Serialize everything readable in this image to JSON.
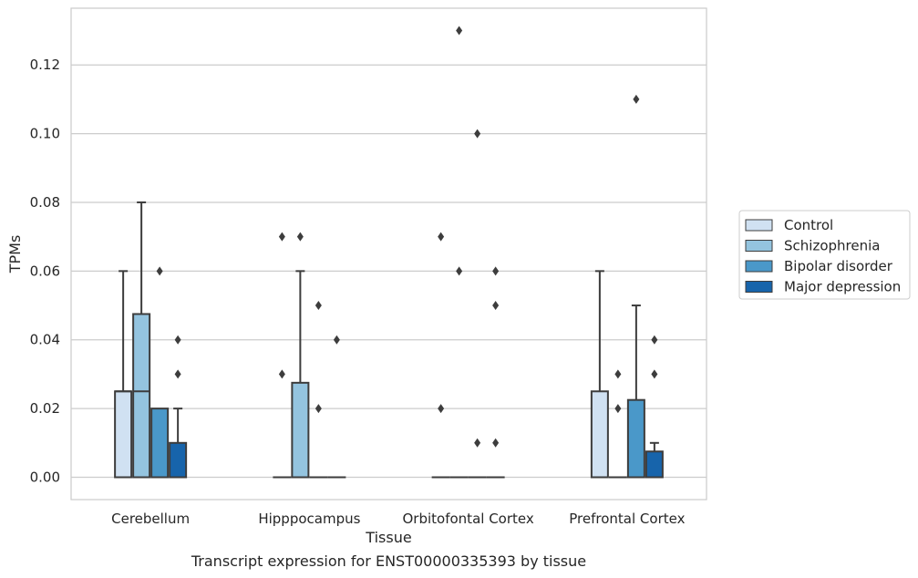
{
  "caption": "Transcript expression for ENST00000335393 by tissue",
  "chart_data": {
    "type": "box",
    "title": "",
    "xlabel": "Tissue",
    "ylabel": "TPMs",
    "ylim": [
      -0.0065,
      0.1365
    ],
    "yticks": [
      0.0,
      0.02,
      0.04,
      0.06,
      0.08,
      0.1,
      0.12
    ],
    "ytick_labels": [
      "0.00",
      "0.02",
      "0.04",
      "0.06",
      "0.08",
      "0.10",
      "0.12"
    ],
    "grid": "horizontal",
    "legend_position": "outside-right",
    "categories": [
      "Cerebellum",
      "Hipppocampus",
      "Orbitofontal Cortex",
      "Prefrontal Cortex"
    ],
    "series": [
      {
        "name": "Control",
        "color": "#d0e1f2",
        "boxes": [
          {
            "whislo": 0.0,
            "q1": 0.0,
            "med": 0.025,
            "q3": 0.025,
            "whishi": 0.06,
            "fliers": []
          },
          {
            "whislo": 0.0,
            "q1": 0.0,
            "med": 0.0,
            "q3": 0.0,
            "whishi": 0.0,
            "fliers": [
              0.07,
              0.03
            ]
          },
          {
            "whislo": 0.0,
            "q1": 0.0,
            "med": 0.0,
            "q3": 0.0,
            "whishi": 0.0,
            "fliers": [
              0.07,
              0.02
            ]
          },
          {
            "whislo": 0.0,
            "q1": 0.0,
            "med": 0.0,
            "q3": 0.025,
            "whishi": 0.06,
            "fliers": []
          }
        ]
      },
      {
        "name": "Schizophrenia",
        "color": "#94c4df",
        "boxes": [
          {
            "whislo": 0.0,
            "q1": 0.0,
            "med": 0.025,
            "q3": 0.0475,
            "whishi": 0.08,
            "fliers": []
          },
          {
            "whislo": 0.0,
            "q1": 0.0,
            "med": 0.0,
            "q3": 0.0275,
            "whishi": 0.06,
            "fliers": [
              0.07
            ]
          },
          {
            "whislo": 0.0,
            "q1": 0.0,
            "med": 0.0,
            "q3": 0.0,
            "whishi": 0.0,
            "fliers": [
              0.13,
              0.06
            ]
          },
          {
            "whislo": 0.0,
            "q1": 0.0,
            "med": 0.0,
            "q3": 0.0,
            "whishi": 0.0,
            "fliers": [
              0.03,
              0.02
            ]
          }
        ]
      },
      {
        "name": "Bipolar disorder",
        "color": "#4a98c9",
        "boxes": [
          {
            "whislo": 0.0,
            "q1": 0.0,
            "med": 0.0,
            "q3": 0.02,
            "whishi": 0.02,
            "fliers": [
              0.06
            ]
          },
          {
            "whislo": 0.0,
            "q1": 0.0,
            "med": 0.0,
            "q3": 0.0,
            "whishi": 0.0,
            "fliers": [
              0.05,
              0.02
            ]
          },
          {
            "whislo": 0.0,
            "q1": 0.0,
            "med": 0.0,
            "q3": 0.0,
            "whishi": 0.0,
            "fliers": [
              0.1,
              0.01
            ]
          },
          {
            "whislo": 0.0,
            "q1": 0.0,
            "med": 0.0,
            "q3": 0.0225,
            "whishi": 0.05,
            "fliers": [
              0.11
            ]
          }
        ]
      },
      {
        "name": "Major depression",
        "color": "#1764ab",
        "boxes": [
          {
            "whislo": 0.0,
            "q1": 0.0,
            "med": 0.0,
            "q3": 0.01,
            "whishi": 0.02,
            "fliers": [
              0.04,
              0.03
            ]
          },
          {
            "whislo": 0.0,
            "q1": 0.0,
            "med": 0.0,
            "q3": 0.0,
            "whishi": 0.0,
            "fliers": [
              0.04
            ]
          },
          {
            "whislo": 0.0,
            "q1": 0.0,
            "med": 0.0,
            "q3": 0.0,
            "whishi": 0.0,
            "fliers": [
              0.06,
              0.05,
              0.01
            ]
          },
          {
            "whislo": 0.0,
            "q1": 0.0,
            "med": 0.0,
            "q3": 0.0075,
            "whishi": 0.01,
            "fliers": [
              0.04,
              0.03
            ]
          }
        ]
      }
    ]
  }
}
